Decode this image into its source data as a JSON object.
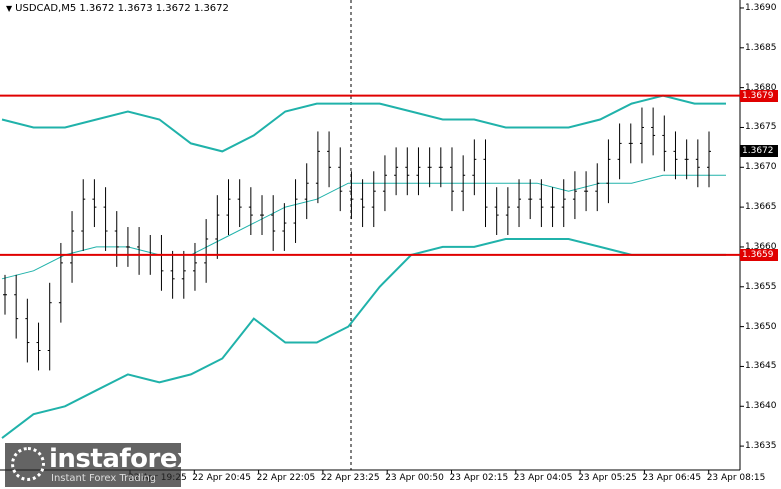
{
  "window": {
    "title": "USDCAD,M5  1.3672 1.3673 1.3672 1.3672"
  },
  "price_axis": {
    "labels": [
      "1.3690",
      "1.3685",
      "1.3680",
      "1.3675",
      "1.3670",
      "1.3665",
      "1.3660",
      "1.3655",
      "1.3650",
      "1.3645",
      "1.3640",
      "1.3635"
    ]
  },
  "time_axis": {
    "labels": [
      "22 Apr 19:25",
      "22 Apr 20:45",
      "22 Apr 22:05",
      "22 Apr 23:25",
      "23 Apr 00:50",
      "23 Apr 02:15",
      "23 Apr 04:05",
      "23 Apr 05:25",
      "23 Apr 06:45",
      "23 Apr 08:15"
    ]
  },
  "levels": {
    "upper_label": "1.3679",
    "lower_label": "1.3659",
    "current_label": "1.3672",
    "line_color": "#e00000"
  },
  "colors": {
    "bands": "#20b2aa",
    "candles": "#000000",
    "grid": "#c0c0c0"
  },
  "logo": {
    "name": "instaforex",
    "tagline": "Instant Forex Trading",
    "icon": "instaforex-logo-icon"
  },
  "chart_data": {
    "type": "line",
    "symbol": "USDCAD",
    "timeframe": "M5",
    "ylim": [
      1.3632,
      1.3691
    ],
    "x_ticks": [
      "22 Apr 19:25",
      "22 Apr 20:45",
      "22 Apr 22:05",
      "22 Apr 23:25",
      "23 Apr 00:50",
      "23 Apr 02:15",
      "23 Apr 04:05",
      "23 Apr 05:25",
      "23 Apr 06:45",
      "23 Apr 08:15"
    ],
    "horizontal_levels": [
      1.3679,
      1.3659
    ],
    "series": [
      {
        "type": "bar",
        "values": [
          1.3654,
          1.3651,
          1.3648,
          1.3647,
          1.3653,
          1.3658,
          1.3662,
          1.3666,
          1.3665,
          1.3662,
          1.366,
          1.366,
          1.3659,
          1.3659,
          1.3657,
          1.3656,
          1.3657,
          1.3658,
          1.3661,
          1.3664,
          1.3666,
          1.3665,
          1.3664,
          1.3664,
          1.3662,
          1.3663,
          1.3666,
          1.3668,
          1.3672,
          1.367,
          1.3667,
          1.3666,
          1.3665,
          1.3667,
          1.3669,
          1.367,
          1.3669,
          1.367,
          1.367,
          1.367,
          1.3667,
          1.3669,
          1.3671,
          1.3665,
          1.3664,
          1.3665,
          1.3666,
          1.3666,
          1.3665,
          1.3665,
          1.3666,
          1.3667,
          1.3667,
          1.3668,
          1.3671,
          1.3673,
          1.3673,
          1.3675,
          1.3674,
          1.3672,
          1.3671,
          1.3671,
          1.367,
          1.3672
        ]
      },
      {
        "values": [
          1.3676,
          1.3675,
          1.3675,
          1.3676,
          1.3677,
          1.3676,
          1.3673,
          1.3672,
          1.3674,
          1.3677,
          1.3678,
          1.3678,
          1.3678,
          1.3677,
          1.3676,
          1.3676,
          1.3675,
          1.3675,
          1.3675,
          1.3676,
          1.3678,
          1.3679,
          1.3678,
          1.3678
        ]
      },
      {
        "values": [
          1.3656,
          1.3657,
          1.3659,
          1.366,
          1.366,
          1.3659,
          1.3659,
          1.3661,
          1.3663,
          1.3665,
          1.3666,
          1.3668,
          1.3668,
          1.3668,
          1.3668,
          1.3668,
          1.3668,
          1.3668,
          1.3667,
          1.3668,
          1.3668,
          1.3669,
          1.3669,
          1.3669
        ]
      },
      {
        "values": [
          1.3636,
          1.3639,
          1.364,
          1.3642,
          1.3644,
          1.3643,
          1.3644,
          1.3646,
          1.3651,
          1.3648,
          1.3648,
          1.365,
          1.3655,
          1.3659,
          1.366,
          1.366,
          1.3661,
          1.3661,
          1.3661,
          1.366,
          1.3659,
          1.3659,
          1.3659,
          1.3659
        ]
      }
    ]
  }
}
